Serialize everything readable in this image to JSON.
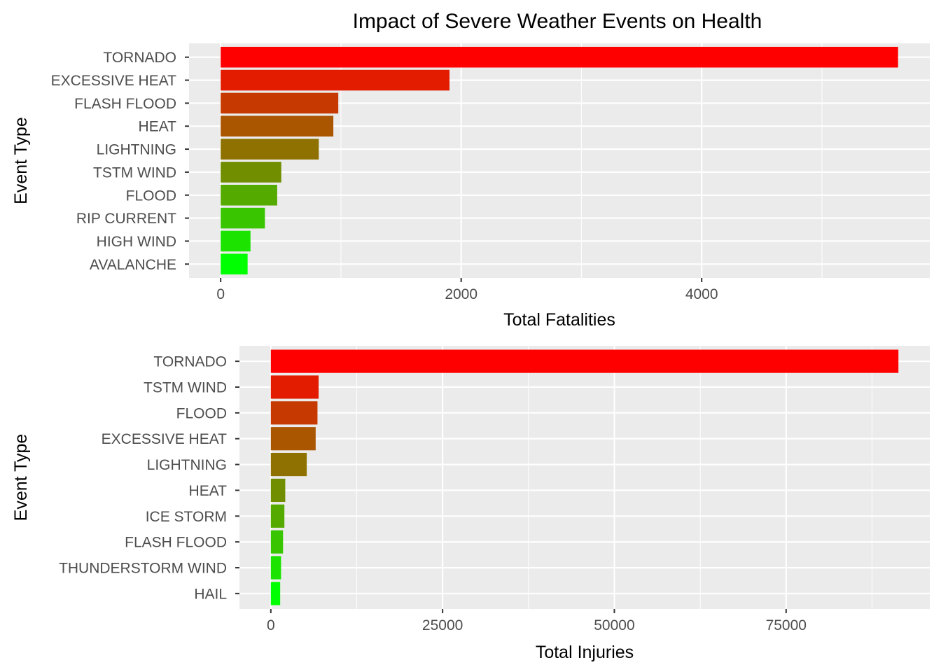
{
  "title": "Impact of Severe Weather Events on Health",
  "chart_data": [
    {
      "type": "bar",
      "orientation": "horizontal",
      "categories": [
        "TORNADO",
        "EXCESSIVE HEAT",
        "FLASH FLOOD",
        "HEAT",
        "LIGHTNING",
        "TSTM WIND",
        "FLOOD",
        "RIP CURRENT",
        "HIGH WIND",
        "AVALANCHE"
      ],
      "values": [
        5633,
        1903,
        978,
        937,
        816,
        504,
        470,
        368,
        248,
        224
      ],
      "colors": [
        "#ff0000",
        "#e31c00",
        "#c63900",
        "#aa5500",
        "#8e7100",
        "#718e00",
        "#55aa00",
        "#39c600",
        "#1ce300",
        "#00ff00"
      ],
      "xlabel": "Total Fatalities",
      "ylabel": "Event Type",
      "xlim": [
        -263,
        5897
      ],
      "xticks": [
        0,
        2000,
        4000
      ],
      "xtick_labels": [
        "0",
        "2000",
        "4000"
      ],
      "grid": true
    },
    {
      "type": "bar",
      "orientation": "horizontal",
      "categories": [
        "TORNADO",
        "TSTM WIND",
        "FLOOD",
        "EXCESSIVE HEAT",
        "LIGHTNING",
        "HEAT",
        "ICE STORM",
        "FLASH FLOOD",
        "THUNDERSTORM WIND",
        "HAIL"
      ],
      "values": [
        91346,
        6957,
        6789,
        6525,
        5230,
        2100,
        1975,
        1777,
        1488,
        1361
      ],
      "colors": [
        "#ff0000",
        "#e31c00",
        "#c63900",
        "#aa5500",
        "#8e7100",
        "#718e00",
        "#55aa00",
        "#39c600",
        "#1ce300",
        "#00ff00"
      ],
      "xlabel": "Total Injuries",
      "ylabel": "Event Type",
      "xlim": [
        -4567,
        95913
      ],
      "xticks": [
        0,
        25000,
        50000,
        75000
      ],
      "xtick_labels": [
        "0",
        "25000",
        "50000",
        "75000"
      ],
      "grid": true
    }
  ]
}
